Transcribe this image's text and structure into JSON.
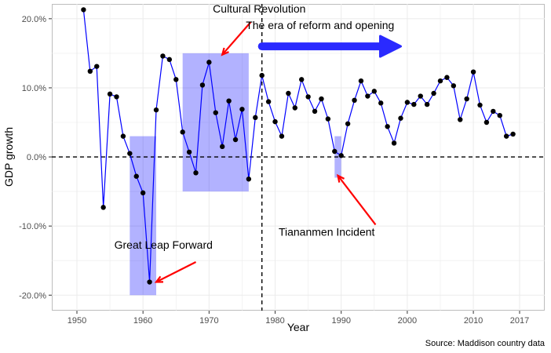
{
  "chart_data": {
    "type": "line",
    "xlabel": "Year",
    "ylabel": "GDP growth",
    "caption": "Source: Maddison country data",
    "xlim": [
      1946.2,
      2020.8
    ],
    "ylim": [
      -0.2224,
      0.2214
    ],
    "x_ticks": [
      1950,
      1960,
      1970,
      1980,
      1990,
      2000,
      2010,
      2017
    ],
    "y_ticks": [
      -0.2,
      -0.1,
      0.0,
      0.1,
      0.2
    ],
    "y_tick_labels": [
      "-20.0%",
      "-10.0%",
      "0.0%",
      "10.0%",
      "20.0%"
    ],
    "grid": true,
    "colors": {
      "line": "#0000FF",
      "point": "#000000",
      "shade": "#0000FF",
      "arrow_red": "#FF0000",
      "grid": "#EBEBEB"
    },
    "series": [
      {
        "x": [
          1951,
          1952,
          1953,
          1954,
          1955,
          1956,
          1957,
          1958,
          1959,
          1960,
          1961,
          1962,
          1963,
          1964,
          1965,
          1966,
          1967,
          1968,
          1969,
          1970,
          1971,
          1972,
          1973,
          1974,
          1975,
          1976,
          1977,
          1978,
          1979,
          1980,
          1981,
          1982,
          1983,
          1984,
          1985,
          1986,
          1987,
          1988,
          1989,
          1990,
          1991,
          1992,
          1993,
          1994,
          1995,
          1996,
          1997,
          1998,
          1999,
          2000,
          2001,
          2002,
          2003,
          2004,
          2005,
          2006,
          2007,
          2008,
          2009,
          2010,
          2011,
          2012,
          2013,
          2014,
          2015,
          2016
        ],
        "y": [
          0.213,
          0.124,
          0.131,
          -0.073,
          0.091,
          0.087,
          0.03,
          0.005,
          -0.028,
          -0.052,
          -0.181,
          0.068,
          0.146,
          0.141,
          0.112,
          0.036,
          0.007,
          -0.023,
          0.104,
          0.137,
          0.064,
          0.015,
          0.081,
          0.025,
          0.069,
          -0.032,
          0.057,
          0.118,
          0.08,
          0.051,
          0.03,
          0.092,
          0.071,
          0.112,
          0.087,
          0.066,
          0.084,
          0.055,
          0.008,
          0.002,
          0.048,
          0.082,
          0.11,
          0.088,
          0.095,
          0.078,
          0.044,
          0.02,
          0.056,
          0.079,
          0.076,
          0.088,
          0.076,
          0.092,
          0.11,
          0.115,
          0.103,
          0.054,
          0.084,
          0.123,
          0.075,
          0.05,
          0.066,
          0.06,
          0.03,
          0.033
        ]
      }
    ],
    "shaded_periods": [
      {
        "x0": 1958,
        "x1": 1962,
        "y0": -0.2,
        "y1": 0.03
      },
      {
        "x0": 1966,
        "x1": 1976,
        "y0": -0.05,
        "y1": 0.15
      },
      {
        "x0": 1989,
        "x1": 1990,
        "y0": -0.03,
        "y1": 0.03
      }
    ],
    "reference_lines": {
      "hline_y": 0.0,
      "vline_x": 1978
    },
    "annotations": [
      {
        "text": "Cultural Revolution",
        "x": 1977.6,
        "y": 0.209
      },
      {
        "text": "The era of reform and opening",
        "x": 1986.8,
        "y": 0.185
      },
      {
        "text": "Great Leap Forward",
        "x": 1963.1,
        "y": -0.133
      },
      {
        "text": "Tiananmen Incident",
        "x": 1987.8,
        "y": -0.114
      }
    ],
    "arrows": [
      {
        "color": "red",
        "from": [
          1976.3,
          0.195
        ],
        "to": [
          1972.0,
          0.148
        ]
      },
      {
        "color": "red",
        "from": [
          1968.0,
          -0.152
        ],
        "to": [
          1962.0,
          -0.181
        ]
      },
      {
        "color": "red",
        "from": [
          1995.2,
          -0.098
        ],
        "to": [
          1989.5,
          -0.027
        ]
      },
      {
        "color": "blue",
        "from": [
          1978.0,
          0.16
        ],
        "to": [
          1999.0,
          0.16
        ]
      }
    ]
  }
}
